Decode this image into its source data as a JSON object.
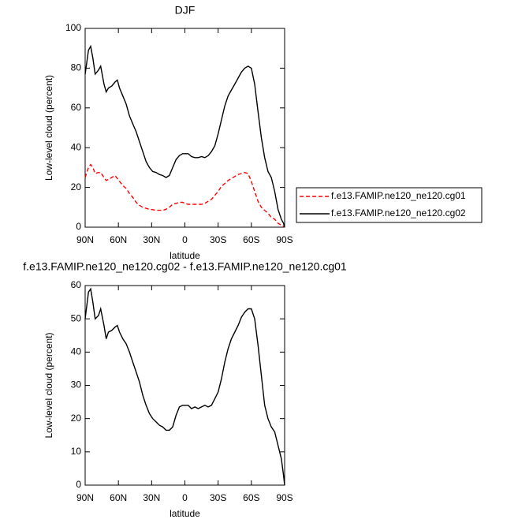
{
  "chart_data": [
    {
      "type": "line",
      "title": "DJF",
      "xlabel": "latitude",
      "ylabel": "Low-level cloud (percent)",
      "xlim": [
        90,
        -90
      ],
      "xticks": [
        {
          "value": 90,
          "label": "90N"
        },
        {
          "value": 60,
          "label": "60N"
        },
        {
          "value": 30,
          "label": "30N"
        },
        0,
        {
          "value": -30,
          "label": "30S"
        },
        {
          "value": -60,
          "label": "60S"
        },
        {
          "value": -90,
          "label": "90S"
        }
      ],
      "ylim": [
        0,
        100
      ],
      "yticks": [
        0,
        20,
        40,
        60,
        80,
        100
      ],
      "x": [
        90,
        87,
        85,
        83,
        81,
        78,
        76,
        73,
        71,
        69,
        66,
        63,
        61,
        59,
        56,
        53,
        50,
        47,
        44,
        41,
        38,
        35,
        32,
        29,
        26,
        23,
        20,
        17,
        14,
        11,
        8,
        5,
        2,
        0,
        -3,
        -6,
        -9,
        -12,
        -15,
        -18,
        -21,
        -24,
        -27,
        -30,
        -33,
        -36,
        -39,
        -42,
        -45,
        -48,
        -51,
        -54,
        -57,
        -60,
        -63,
        -66,
        -69,
        -72,
        -75,
        -78,
        -81,
        -84,
        -87,
        -89,
        -90
      ],
      "legend": "right",
      "series": [
        {
          "name": "f.e13.FAMIP.ne120_ne120.cg01",
          "color": "#ff0000",
          "dash": true,
          "values": [
            25,
            30,
            31.5,
            30,
            27,
            27.5,
            27.5,
            25,
            23.5,
            24,
            25,
            26,
            24.5,
            23,
            21,
            19.5,
            17,
            15,
            12.5,
            11,
            10,
            9.5,
            9,
            8.8,
            8.5,
            8.5,
            8.5,
            9,
            10,
            11.5,
            12,
            12.5,
            12.5,
            12,
            11.5,
            11.5,
            11.5,
            11.5,
            11.5,
            12,
            13,
            14,
            16,
            18,
            20.5,
            22,
            23.5,
            24.5,
            25.5,
            26.5,
            27,
            27.5,
            27,
            23,
            18,
            13,
            10,
            8.5,
            7,
            5,
            4,
            2,
            1,
            0.5,
            0
          ]
        },
        {
          "name": "f.e13.FAMIP.ne120_ne120.cg02",
          "color": "#000000",
          "dash": false,
          "values": [
            77,
            89,
            91,
            85,
            77,
            79,
            81,
            72,
            68,
            70,
            71,
            73,
            74,
            70,
            66,
            62,
            56,
            52,
            48,
            43,
            38,
            33,
            30,
            28,
            27.5,
            26.5,
            26,
            25,
            26,
            30,
            34,
            36,
            37,
            37,
            37,
            35.5,
            35,
            35,
            35.5,
            35,
            36,
            38,
            41,
            47,
            54,
            61,
            66,
            69,
            72,
            75,
            78,
            80,
            81,
            80,
            72,
            58,
            45,
            35,
            28,
            25,
            18,
            9,
            4,
            2,
            0
          ]
        }
      ]
    },
    {
      "type": "line",
      "title": "f.e13.FAMIP.ne120_ne120.cg02 - f.e13.FAMIP.ne120_ne120.cg01",
      "xlabel": "latitude",
      "ylabel": "Low-level cloud (percent)",
      "xlim": [
        90,
        -90
      ],
      "xticks": [
        {
          "value": 90,
          "label": "90N"
        },
        {
          "value": 60,
          "label": "60N"
        },
        {
          "value": 30,
          "label": "30N"
        },
        0,
        {
          "value": -30,
          "label": "30S"
        },
        {
          "value": -60,
          "label": "60S"
        },
        {
          "value": -90,
          "label": "90S"
        }
      ],
      "ylim": [
        0,
        60
      ],
      "yticks": [
        0,
        10,
        20,
        30,
        40,
        50,
        60
      ],
      "x": [
        90,
        87,
        85,
        83,
        81,
        78,
        76,
        73,
        71,
        69,
        66,
        63,
        61,
        59,
        56,
        53,
        50,
        47,
        44,
        41,
        38,
        35,
        32,
        29,
        26,
        23,
        20,
        17,
        14,
        11,
        8,
        5,
        2,
        0,
        -3,
        -6,
        -9,
        -12,
        -15,
        -18,
        -21,
        -24,
        -27,
        -30,
        -33,
        -36,
        -39,
        -42,
        -45,
        -48,
        -51,
        -54,
        -57,
        -60,
        -63,
        -66,
        -69,
        -72,
        -75,
        -78,
        -81,
        -84,
        -87,
        -89,
        -90
      ],
      "color": "#000000",
      "values": [
        50,
        58,
        59,
        55,
        50,
        51,
        53,
        48,
        44,
        46,
        46.5,
        47.5,
        48,
        46,
        44,
        42.5,
        40,
        37,
        34,
        31,
        27,
        24,
        21.5,
        20,
        19,
        18,
        17.5,
        16.5,
        16.5,
        17.5,
        21,
        23.5,
        24,
        24,
        24,
        23,
        23.5,
        23,
        23.5,
        24,
        23.5,
        24,
        26,
        28,
        32,
        37,
        41,
        44,
        46,
        48,
        50.5,
        52,
        53,
        53,
        50,
        42,
        33,
        24,
        20,
        17.5,
        16,
        12,
        8,
        3,
        0
      ]
    }
  ]
}
